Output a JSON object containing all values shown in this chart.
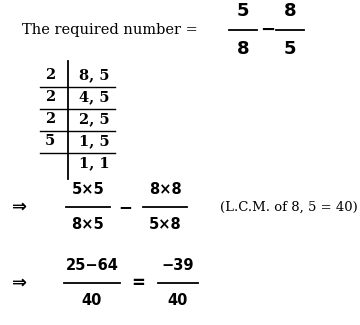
{
  "bg_color": "#ffffff",
  "text_color": "#000000",
  "frac1_num": "5",
  "frac1_den": "8",
  "frac2_num": "8",
  "frac2_den": "5",
  "lcm_divisors": [
    "2",
    "2",
    "2",
    "5"
  ],
  "lcm_rows": [
    "8, 5",
    "4, 5",
    "2, 5",
    "1, 5"
  ],
  "lcm_last": "1, 1",
  "step2_frac1_num": "5×5",
  "step2_frac1_den": "8×5",
  "step2_frac2_num": "8×8",
  "step2_frac2_den": "5×8",
  "step2_note": "(L.C.M. of 8, 5 = 40)",
  "step3_num": "25−64",
  "step3_den": "40",
  "step3_res_num": "−39",
  "step3_res_den": "40",
  "arrow": "⇒",
  "figsize": [
    3.6,
    3.25
  ],
  "dpi": 100
}
